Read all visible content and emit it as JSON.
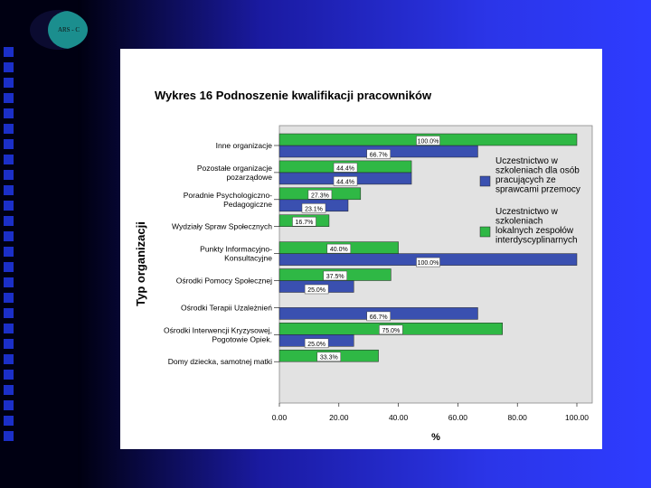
{
  "logo": {
    "text": "ARS - C"
  },
  "chart_data": {
    "type": "bar",
    "orientation": "horizontal",
    "title": "Wykres 16 Podnoszenie kwalifikacji pracowników",
    "xlabel": "%",
    "ylabel": "Typ organizacji",
    "xlim": [
      0,
      100
    ],
    "x_ticks": [
      "0.00",
      "20.00",
      "40.00",
      "60.00",
      "80.00",
      "100.00"
    ],
    "categories": [
      [
        "Inne organizacje"
      ],
      [
        "Pozostałe organizacje",
        "pozarządowe"
      ],
      [
        "Poradnie Psychologiczno-",
        "Pedagogiczne"
      ],
      [
        "Wydziały Spraw Społecznych"
      ],
      [
        "Punkty Informacyjno-",
        "Konsultacyjne"
      ],
      [
        "Ośrodki Pomocy Społecznej"
      ],
      [
        "Ośrodki Terapii Uzależnień"
      ],
      [
        "Ośrodki Interwencji Kryzysowej,",
        "Pogotowie Opiek."
      ],
      [
        "Domy dziecka, samotnej matki"
      ]
    ],
    "series": [
      {
        "name": "Uczestnictwo w szkoleniach dla osób pracujących ze sprawcami przemocy",
        "legend_lines": [
          "Uczestnictwo w",
          "szkoleniach dla osób",
          "pracujących ze",
          "sprawcami przemocy"
        ],
        "color": "#3a50b0",
        "values": [
          66.7,
          44.4,
          23.1,
          null,
          100.0,
          25.0,
          66.7,
          25.0,
          null
        ],
        "labels": [
          "66.7%",
          "44.4%",
          "23.1%",
          "",
          "100.0%",
          "25.0%",
          "66.7%",
          "25.0%",
          ""
        ]
      },
      {
        "name": "Uczestnictwo w szkoleniach lokalnych zespołów interdyscyplinarnych",
        "legend_lines": [
          "Uczestnictwo w",
          "szkoleniach",
          "lokalnych zespołów",
          "interdyscyplinarnych"
        ],
        "color": "#2fb845",
        "values": [
          100.0,
          44.4,
          27.3,
          16.7,
          40.0,
          37.5,
          null,
          75.0,
          33.3
        ],
        "labels": [
          "100.0%",
          "44.4%",
          "27.3%",
          "16.7%",
          "40.0%",
          "37.5%",
          "",
          "75.0%",
          "33.3%"
        ]
      }
    ]
  }
}
